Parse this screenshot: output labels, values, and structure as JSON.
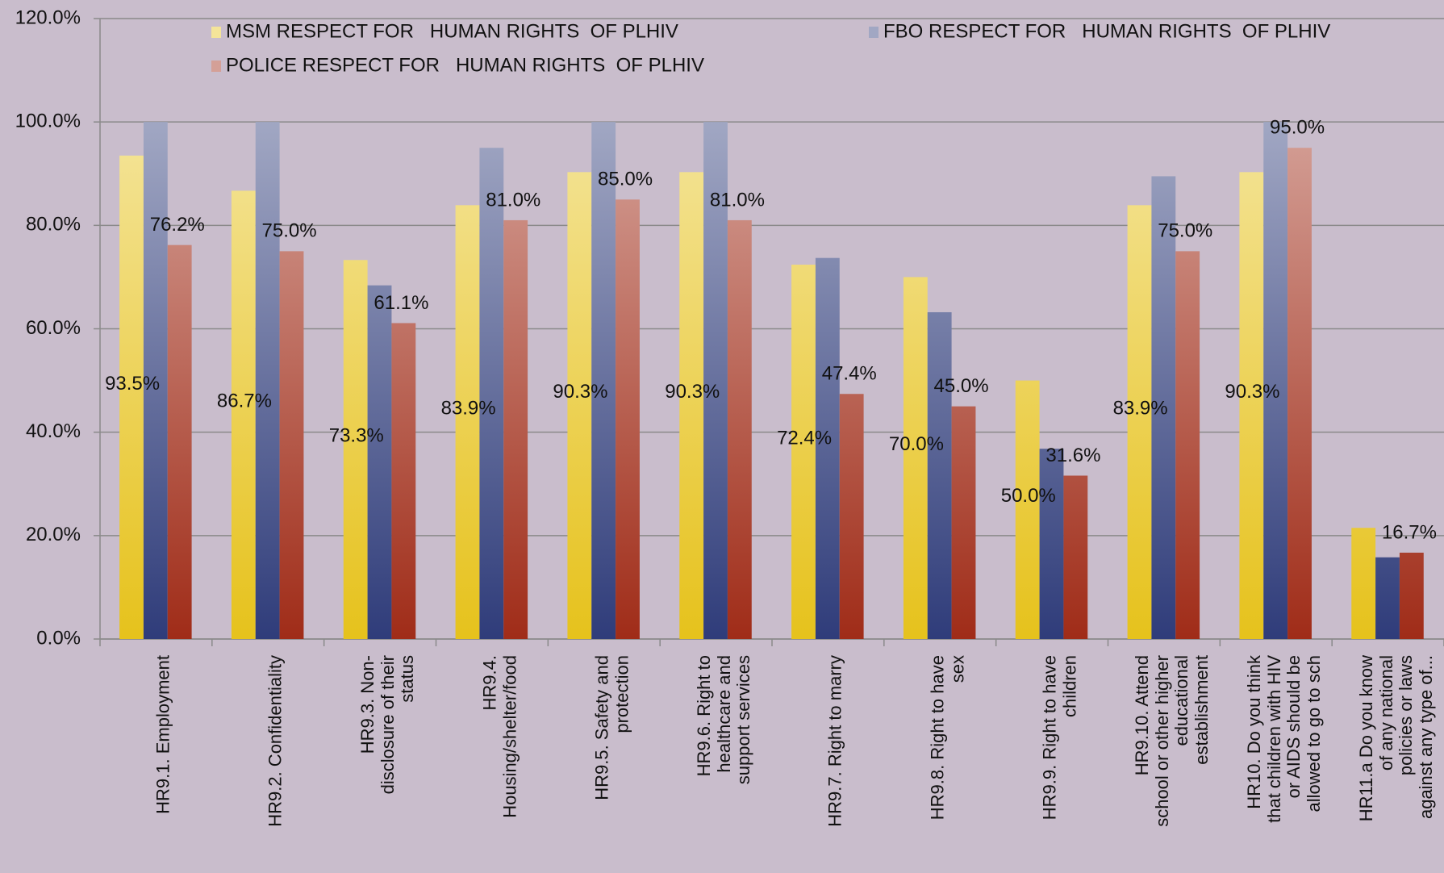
{
  "chart_data": {
    "type": "bar",
    "categories": [
      "HR9.1.  Employment",
      "HR9.2. Confidentiality",
      "HR9.3. Non-\ndisclosure of their\nstatus",
      "HR9.4.\nHousing/shelter/food",
      "HR9.5. Safety and\nprotection",
      "HR9.6. Right to\nhealthcare and\nsupport services",
      "HR9.7. Right to marry",
      "HR9.8. Right to have\nsex",
      "HR9.9. Right to have\nchildren",
      "HR9.10. Attend\nschool or other higher\neducational\nestablishment",
      "HR10. Do you think\nthat children with HIV\nor AIDS should be\nallowed to go to sch",
      "HR11.a Do you know\nof any national\npolicies or laws\nagainst any type of..."
    ],
    "series": [
      {
        "name": "MSM RESPECT FOR   HUMAN RIGHTS  OF PLHIV",
        "color": "#e6c21c",
        "values": [
          93.5,
          86.7,
          73.3,
          83.9,
          90.3,
          90.3,
          72.4,
          70.0,
          50.0,
          83.9,
          90.3,
          21.5
        ],
        "value_labels": [
          "93.5%",
          "86.7%",
          "73.3%",
          "83.9%",
          "90.3%",
          "90.3%",
          "72.4%",
          "70.0%",
          "50.0%",
          "83.9%",
          "90.3%",
          null
        ]
      },
      {
        "name": "FBO RESPECT FOR   HUMAN RIGHTS  OF PLHIV",
        "color": "#2f3c7a",
        "values": [
          100,
          100,
          68.4,
          95,
          100,
          100,
          73.7,
          63.2,
          36.8,
          89.5,
          100,
          15.8
        ]
      },
      {
        "name": "POLICE RESPECT FOR   HUMAN RIGHTS  OF PLHIV",
        "color": "#a02c18",
        "values": [
          76.2,
          75.0,
          61.1,
          81.0,
          85.0,
          81.0,
          47.4,
          45.0,
          31.6,
          75.0,
          95.0,
          16.7
        ],
        "value_labels": [
          "76.2%",
          "75.0%",
          "61.1%",
          "81.0%",
          "85.0%",
          "81.0%",
          "47.4%",
          "45.0%",
          "31.6%",
          "75.0%",
          "95.0%",
          "16.7%"
        ]
      }
    ],
    "ylim": [
      0,
      120
    ],
    "yticks": [
      {
        "value": 0,
        "label": "0.0%"
      },
      {
        "value": 20,
        "label": "20.0%"
      },
      {
        "value": 40,
        "label": "40.0%"
      },
      {
        "value": 60,
        "label": "60.0%"
      },
      {
        "value": 80,
        "label": "80.0%"
      },
      {
        "value": 100,
        "label": "100.0%"
      },
      {
        "value": 120,
        "label": "120.0%"
      }
    ],
    "grid": true,
    "legend": "top"
  }
}
